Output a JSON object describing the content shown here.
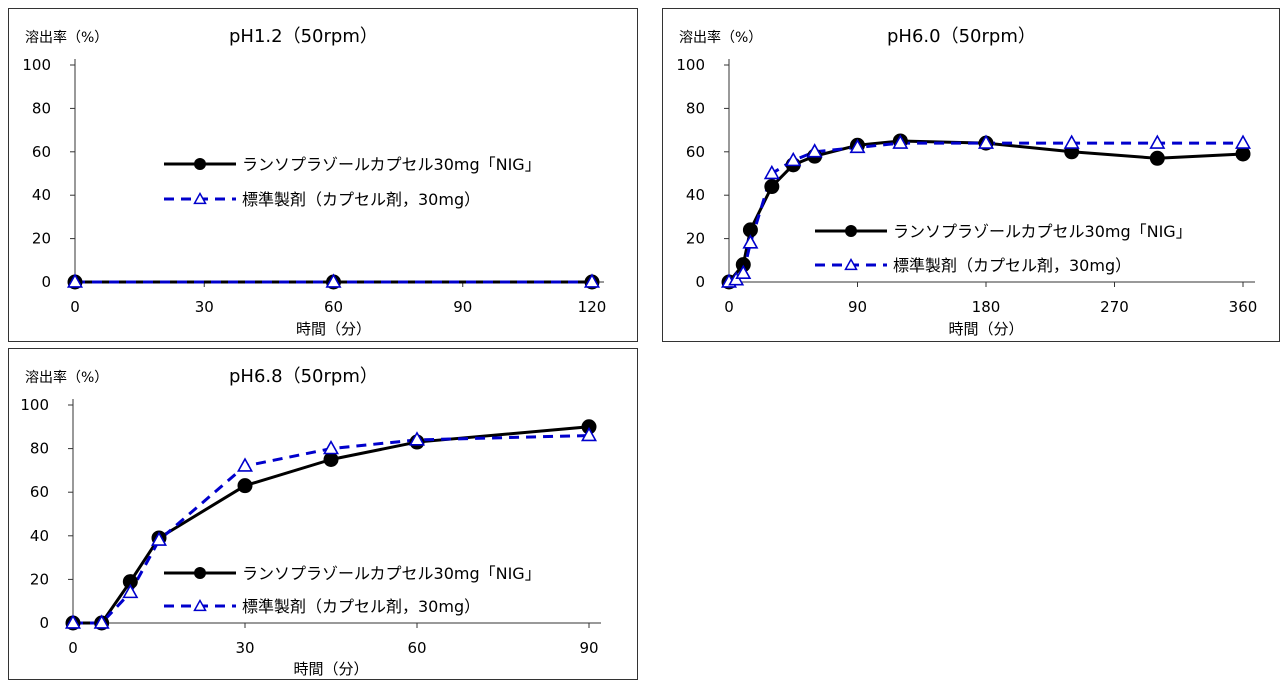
{
  "chart_data": [
    {
      "type": "line",
      "title": "pH1.2（50rpm）",
      "ylabel": "溶出率（%）",
      "xlabel": "時間（分）",
      "xlim": [
        0,
        120
      ],
      "ylim": [
        0,
        100
      ],
      "xticks": [
        0,
        30,
        60,
        90,
        120
      ],
      "yticks": [
        0,
        20,
        40,
        60,
        80,
        100
      ],
      "legend_position": "center-right",
      "series": [
        {
          "name": "ランソプラゾールカプセル30mg「NIG」",
          "color": "#000000",
          "marker": "circle",
          "dash": "solid",
          "x": [
            0,
            60,
            120
          ],
          "y": [
            0,
            0,
            0
          ]
        },
        {
          "name": "標準製剤（カプセル剤，30mg）",
          "color": "#0000cc",
          "marker": "triangle",
          "dash": "dashed",
          "x": [
            0,
            60,
            120
          ],
          "y": [
            0,
            0,
            0
          ]
        }
      ]
    },
    {
      "type": "line",
      "title": "pH6.0（50rpm）",
      "ylabel": "溶出率（%）",
      "xlabel": "時間（分）",
      "xlim": [
        0,
        360
      ],
      "ylim": [
        0,
        100
      ],
      "xticks": [
        0,
        90,
        180,
        270,
        360
      ],
      "yticks": [
        0,
        20,
        40,
        60,
        80,
        100
      ],
      "legend_position": "bottom-right",
      "series": [
        {
          "name": "ランソプラゾールカプセル30mg「NIG」",
          "color": "#000000",
          "marker": "circle",
          "dash": "solid",
          "x": [
            0,
            10,
            15,
            30,
            45,
            60,
            90,
            120,
            180,
            240,
            300,
            360
          ],
          "y": [
            0,
            8,
            24,
            44,
            54,
            58,
            63,
            65,
            64,
            60,
            57,
            59
          ]
        },
        {
          "name": "標準製剤（カプセル剤，30mg）",
          "color": "#0000cc",
          "marker": "triangle",
          "dash": "dashed",
          "x": [
            0,
            5,
            10,
            15,
            30,
            45,
            60,
            90,
            120,
            180,
            240,
            300,
            360
          ],
          "y": [
            0,
            1,
            4,
            18,
            50,
            56,
            60,
            62,
            64,
            64,
            64,
            64,
            64
          ]
        }
      ]
    },
    {
      "type": "line",
      "title": "pH6.8（50rpm）",
      "ylabel": "溶出率（%）",
      "xlabel": "時間（分）",
      "xlim": [
        0,
        90
      ],
      "ylim": [
        0,
        100
      ],
      "xticks": [
        0,
        30,
        60,
        90
      ],
      "yticks": [
        0,
        20,
        40,
        60,
        80,
        100
      ],
      "legend_position": "bottom-right",
      "series": [
        {
          "name": "ランソプラゾールカプセル30mg「NIG」",
          "color": "#000000",
          "marker": "circle",
          "dash": "solid",
          "x": [
            0,
            5,
            10,
            15,
            30,
            45,
            60,
            90
          ],
          "y": [
            0,
            0,
            19,
            39,
            63,
            75,
            83,
            90
          ]
        },
        {
          "name": "標準製剤（カプセル剤，30mg）",
          "color": "#0000cc",
          "marker": "triangle",
          "dash": "dashed",
          "x": [
            0,
            5,
            10,
            15,
            30,
            45,
            60,
            90
          ],
          "y": [
            0,
            0,
            14,
            38,
            72,
            80,
            84,
            86
          ]
        }
      ]
    }
  ]
}
